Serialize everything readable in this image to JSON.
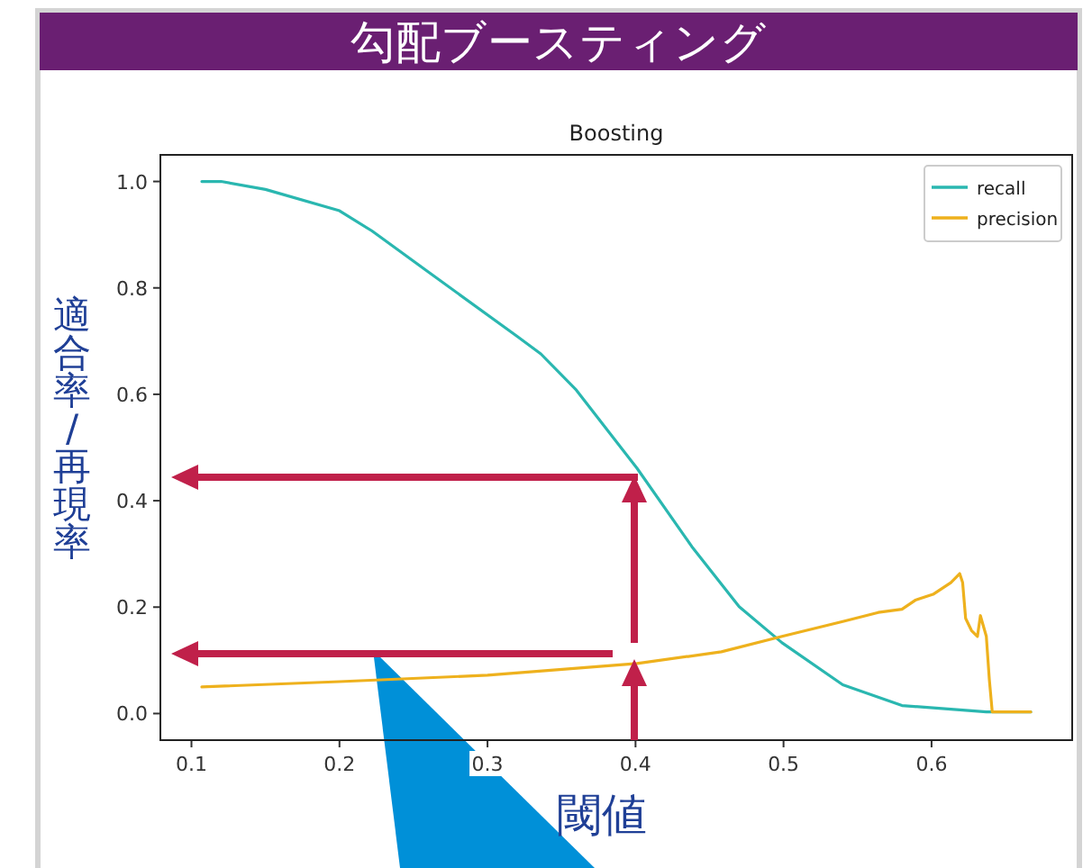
{
  "chart_data": {
    "type": "line",
    "title": "勾配ブースティング",
    "subtitle": "Boosting",
    "xlabel": "閾値",
    "ylabel": "適合率/再現率",
    "xlim": [
      0.079,
      0.695
    ],
    "ylim": [
      -0.05,
      1.05
    ],
    "xticks": [
      0.1,
      0.2,
      0.3,
      0.4,
      0.5,
      0.6
    ],
    "yticks": [
      {
        "value": 0,
        "label": "0.0"
      },
      0.2,
      0.4,
      0.6,
      0.8,
      {
        "value": 1,
        "label": "1.0"
      }
    ],
    "legend": "top right",
    "line_style": "solid",
    "series": [
      {
        "name": "recall",
        "color": "#2ab7b0",
        "x": [
          0.107,
          0.12,
          0.15,
          0.2,
          0.222,
          0.26,
          0.32,
          0.336,
          0.36,
          0.401,
          0.438,
          0.47,
          0.499,
          0.54,
          0.58,
          0.637,
          0.667
        ],
        "values": [
          1.0,
          1.0,
          0.985,
          0.945,
          0.907,
          0.83,
          0.709,
          0.676,
          0.608,
          0.461,
          0.314,
          0.201,
          0.133,
          0.054,
          0.015,
          0.003,
          0.003
        ]
      },
      {
        "name": "precision",
        "color": "#eeb11d",
        "x": [
          0.107,
          0.2,
          0.3,
          0.401,
          0.458,
          0.499,
          0.54,
          0.564,
          0.58,
          0.589,
          0.601,
          0.613,
          0.619,
          0.621,
          0.623,
          0.627,
          0.631,
          0.633,
          0.637,
          0.639,
          0.641,
          0.667
        ],
        "values": [
          0.05,
          0.06,
          0.072,
          0.094,
          0.116,
          0.145,
          0.173,
          0.19,
          0.196,
          0.213,
          0.224,
          0.246,
          0.263,
          0.246,
          0.179,
          0.156,
          0.145,
          0.184,
          0.145,
          0.065,
          0.003,
          0.003
        ]
      }
    ]
  }
}
